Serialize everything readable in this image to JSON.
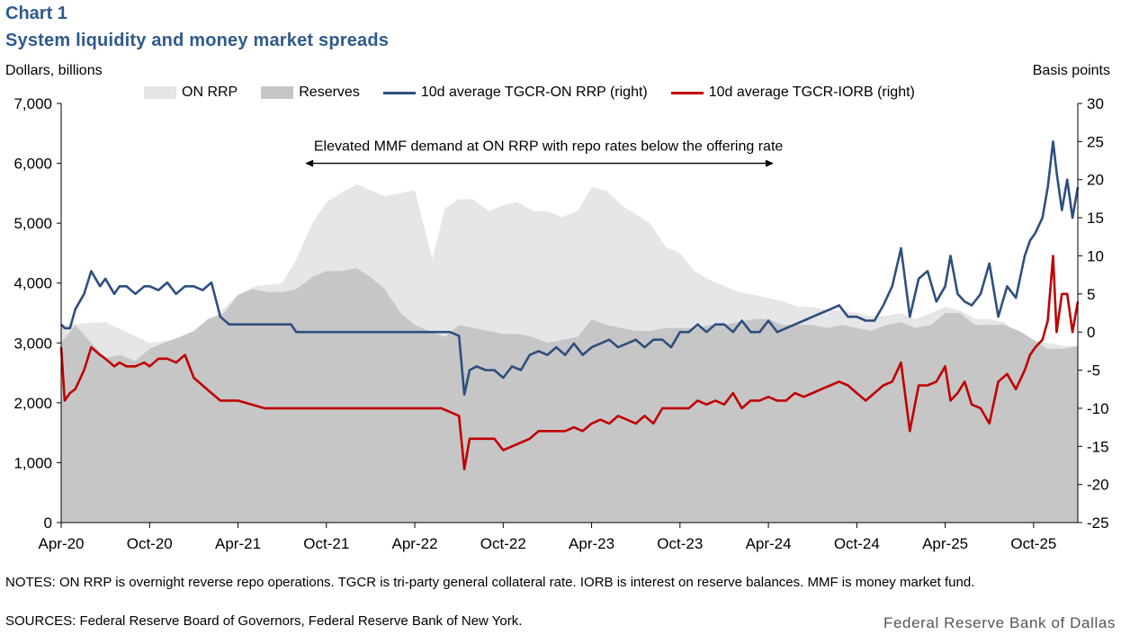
{
  "header": {
    "chart_label": "Chart 1",
    "title": "System liquidity and money market spreads",
    "left_unit": "Dollars, billions",
    "right_unit": "Basis points"
  },
  "colors": {
    "on_rrp": "#e6e6e8",
    "reserves": "#c6c6c6",
    "tgcr_on_rrp": "#2d4f7e",
    "tgcr_iorb": "#c00000",
    "title": "#2f5a8c"
  },
  "chart_data": {
    "type": "area",
    "title": "System liquidity and money market spreads",
    "xlabel": "",
    "ylabel_left": "Dollars, billions",
    "ylabel_right": "Basis points",
    "x_range": [
      2020.25,
      2026.0
    ],
    "ylim_left": [
      0,
      7000
    ],
    "ylim_right": [
      -25,
      30
    ],
    "x_ticks": [
      {
        "label": "Apr-20",
        "x": 2020.25
      },
      {
        "label": "Oct-20",
        "x": 2020.75
      },
      {
        "label": "Apr-21",
        "x": 2021.25
      },
      {
        "label": "Oct-21",
        "x": 2021.75
      },
      {
        "label": "Apr-22",
        "x": 2022.25
      },
      {
        "label": "Oct-22",
        "x": 2022.75
      },
      {
        "label": "Apr-23",
        "x": 2023.25
      },
      {
        "label": "Oct-23",
        "x": 2023.75
      },
      {
        "label": "Apr-24",
        "x": 2024.25
      },
      {
        "label": "Oct-24",
        "x": 2024.75
      },
      {
        "label": "Apr-25",
        "x": 2025.25
      },
      {
        "label": "Oct-25",
        "x": 2025.75
      }
    ],
    "left_ticks": [
      "0",
      "1,000",
      "2,000",
      "3,000",
      "4,000",
      "5,000",
      "6,000",
      "7,000"
    ],
    "left_tick_values": [
      0,
      1000,
      2000,
      3000,
      4000,
      5000,
      6000,
      7000
    ],
    "right_ticks": [
      "-25",
      "-20",
      "-15",
      "-10",
      "-5",
      "0",
      "5",
      "10",
      "15",
      "20",
      "25",
      "30"
    ],
    "right_tick_values": [
      -25,
      -20,
      -15,
      -10,
      -5,
      0,
      5,
      10,
      15,
      20,
      25,
      30
    ],
    "annotation": {
      "text": "Elevated MMF demand at ON RRP with repo rates below the offering rate",
      "x_start": 2021.63,
      "x_end": 2024.28,
      "arrow_y_left": 6000
    },
    "series": [
      {
        "name": "ON RRP",
        "axis": "left",
        "kind": "area",
        "x": [
          2020.25,
          2020.5,
          2020.75,
          2021.0,
          2021.25,
          2021.35,
          2021.5,
          2021.58,
          2021.67,
          2021.75,
          2021.83,
          2021.92,
          2022.0,
          2022.08,
          2022.17,
          2022.25,
          2022.35,
          2022.42,
          2022.5,
          2022.58,
          2022.67,
          2022.75,
          2022.83,
          2022.92,
          2023.0,
          2023.08,
          2023.17,
          2023.25,
          2023.33,
          2023.42,
          2023.5,
          2023.58,
          2023.67,
          2023.75,
          2023.83,
          2023.92,
          2024.0,
          2024.08,
          2024.17,
          2024.25,
          2024.33,
          2024.42,
          2024.5,
          2024.58,
          2024.67,
          2024.75,
          2024.83,
          2024.92,
          2025.0,
          2025.08,
          2025.17,
          2025.25,
          2025.33,
          2025.42,
          2025.5,
          2025.58,
          2025.67,
          2025.75,
          2025.83,
          2025.92,
          2026.0
        ],
        "values": [
          3300,
          3350,
          3000,
          3100,
          3800,
          3950,
          4000,
          4400,
          5000,
          5350,
          5500,
          5650,
          5550,
          5450,
          5500,
          5550,
          4400,
          5250,
          5400,
          5400,
          5200,
          5300,
          5350,
          5200,
          5200,
          5100,
          5200,
          5600,
          5550,
          5300,
          5150,
          5000,
          4600,
          4500,
          4200,
          4050,
          3950,
          3850,
          3800,
          3750,
          3700,
          3600,
          3600,
          3550,
          3550,
          3500,
          3450,
          3450,
          3500,
          3400,
          3500,
          3600,
          3550,
          3400,
          3400,
          3350,
          3150,
          3050,
          3000,
          2950,
          2950
        ]
      },
      {
        "name": "Reserves",
        "axis": "left",
        "kind": "area",
        "x": [
          2020.25,
          2020.33,
          2020.42,
          2020.5,
          2020.58,
          2020.67,
          2020.75,
          2020.83,
          2020.92,
          2021.0,
          2021.08,
          2021.17,
          2021.25,
          2021.33,
          2021.42,
          2021.5,
          2021.58,
          2021.67,
          2021.75,
          2021.83,
          2021.92,
          2022.0,
          2022.08,
          2022.17,
          2022.25,
          2022.33,
          2022.42,
          2022.5,
          2022.58,
          2022.67,
          2022.75,
          2022.83,
          2022.92,
          2023.0,
          2023.08,
          2023.17,
          2023.25,
          2023.33,
          2023.42,
          2023.5,
          2023.58,
          2023.67,
          2023.75,
          2023.83,
          2023.92,
          2024.0,
          2024.08,
          2024.17,
          2024.25,
          2024.33,
          2024.42,
          2024.5,
          2024.58,
          2024.67,
          2024.75,
          2024.83,
          2024.92,
          2025.0,
          2025.08,
          2025.17,
          2025.25,
          2025.33,
          2025.42,
          2025.5,
          2025.58,
          2025.67,
          2025.75,
          2025.83,
          2025.92,
          2026.0
        ],
        "values": [
          3000,
          3300,
          3000,
          2750,
          2800,
          2700,
          2900,
          3000,
          3100,
          3200,
          3400,
          3500,
          3800,
          3900,
          3850,
          3850,
          3900,
          4100,
          4200,
          4200,
          4250,
          4100,
          3900,
          3500,
          3300,
          3200,
          3100,
          3300,
          3250,
          3200,
          3150,
          3150,
          3100,
          3000,
          3050,
          3100,
          3400,
          3300,
          3250,
          3200,
          3200,
          3250,
          3250,
          3250,
          3300,
          3300,
          3350,
          3400,
          3400,
          3300,
          3300,
          3300,
          3250,
          3300,
          3250,
          3200,
          3300,
          3350,
          3250,
          3300,
          3500,
          3500,
          3300,
          3300,
          3300,
          3200,
          3050,
          2900,
          2900,
          2950
        ]
      },
      {
        "name": "10d average TGCR-ON RRP (right)",
        "axis": "right",
        "kind": "line",
        "x": [
          2020.25,
          2020.27,
          2020.3,
          2020.33,
          2020.38,
          2020.42,
          2020.47,
          2020.5,
          2020.55,
          2020.58,
          2020.62,
          2020.67,
          2020.72,
          2020.75,
          2020.8,
          2020.85,
          2020.9,
          2020.95,
          2021.0,
          2021.05,
          2021.1,
          2021.15,
          2021.2,
          2021.25,
          2021.4,
          2021.55,
          2021.58,
          2021.7,
          2021.85,
          2022.0,
          2022.15,
          2022.3,
          2022.4,
          2022.45,
          2022.5,
          2022.53,
          2022.56,
          2022.6,
          2022.65,
          2022.7,
          2022.75,
          2022.8,
          2022.85,
          2022.9,
          2022.95,
          2023.0,
          2023.05,
          2023.1,
          2023.15,
          2023.2,
          2023.25,
          2023.3,
          2023.35,
          2023.4,
          2023.45,
          2023.5,
          2023.55,
          2023.6,
          2023.65,
          2023.7,
          2023.75,
          2023.8,
          2023.85,
          2023.9,
          2023.95,
          2024.0,
          2024.05,
          2024.1,
          2024.15,
          2024.2,
          2024.25,
          2024.3,
          2024.35,
          2024.4,
          2024.45,
          2024.5,
          2024.55,
          2024.6,
          2024.65,
          2024.7,
          2024.75,
          2024.8,
          2024.85,
          2024.9,
          2024.95,
          2025.0,
          2025.05,
          2025.1,
          2025.15,
          2025.2,
          2025.25,
          2025.28,
          2025.32,
          2025.36,
          2025.4,
          2025.45,
          2025.5,
          2025.55,
          2025.6,
          2025.65,
          2025.7,
          2025.73,
          2025.76,
          2025.8,
          2025.83,
          2025.86,
          2025.88,
          2025.91,
          2025.94,
          2025.97,
          2026.0
        ],
        "values": [
          1,
          0.5,
          0.5,
          3,
          5,
          8,
          6,
          7,
          5,
          6,
          6,
          5,
          6,
          6,
          5.5,
          6.5,
          5,
          6,
          6,
          5.5,
          6.5,
          2,
          1,
          1,
          1,
          1,
          0,
          0,
          0,
          0,
          0,
          0,
          0,
          0,
          -0.5,
          -8.2,
          -5,
          -4.5,
          -5,
          -5,
          -6,
          -4.5,
          -5,
          -3,
          -2.5,
          -3,
          -2,
          -3,
          -1.5,
          -3,
          -2,
          -1.5,
          -1,
          -2,
          -1.5,
          -1,
          -2,
          -1,
          -1,
          -2,
          0,
          0,
          1,
          0,
          1,
          1,
          0,
          1.5,
          0,
          0,
          1.5,
          0,
          0.5,
          1,
          1.5,
          2,
          2.5,
          3,
          3.5,
          2,
          2,
          1.5,
          1.5,
          3.5,
          6,
          11,
          2,
          7,
          8,
          4,
          6,
          10,
          5,
          4,
          3.5,
          5,
          9,
          2,
          6,
          4.5,
          10,
          12,
          13,
          15,
          19,
          25,
          21,
          16,
          20,
          15,
          19
        ]
      },
      {
        "name": "10d average TGCR-IORB (right)",
        "axis": "right",
        "kind": "line",
        "x": [
          2020.25,
          2020.27,
          2020.3,
          2020.33,
          2020.38,
          2020.42,
          2020.47,
          2020.5,
          2020.55,
          2020.58,
          2020.62,
          2020.67,
          2020.72,
          2020.75,
          2020.8,
          2020.85,
          2020.9,
          2020.95,
          2021.0,
          2021.05,
          2021.1,
          2021.15,
          2021.2,
          2021.25,
          2021.4,
          2021.55,
          2021.58,
          2021.7,
          2021.85,
          2022.0,
          2022.15,
          2022.3,
          2022.4,
          2022.45,
          2022.5,
          2022.53,
          2022.56,
          2022.6,
          2022.65,
          2022.7,
          2022.75,
          2022.8,
          2022.85,
          2022.9,
          2022.95,
          2023.0,
          2023.05,
          2023.1,
          2023.15,
          2023.2,
          2023.25,
          2023.3,
          2023.35,
          2023.4,
          2023.45,
          2023.5,
          2023.55,
          2023.6,
          2023.65,
          2023.7,
          2023.75,
          2023.8,
          2023.85,
          2023.9,
          2023.95,
          2024.0,
          2024.05,
          2024.1,
          2024.15,
          2024.2,
          2024.25,
          2024.3,
          2024.35,
          2024.4,
          2024.45,
          2024.5,
          2024.55,
          2024.6,
          2024.65,
          2024.7,
          2024.75,
          2024.8,
          2024.85,
          2024.9,
          2024.95,
          2025.0,
          2025.05,
          2025.1,
          2025.15,
          2025.2,
          2025.25,
          2025.28,
          2025.32,
          2025.36,
          2025.4,
          2025.45,
          2025.5,
          2025.55,
          2025.6,
          2025.65,
          2025.7,
          2025.73,
          2025.76,
          2025.8,
          2025.83,
          2025.86,
          2025.88,
          2025.91,
          2025.94,
          2025.97,
          2026.0
        ],
        "values": [
          -2,
          -9,
          -8,
          -7.5,
          -5,
          -2,
          -3,
          -3.5,
          -4.5,
          -4,
          -4.5,
          -4.5,
          -4,
          -4.5,
          -3.5,
          -3.5,
          -4,
          -3,
          -6,
          -7,
          -8,
          -9,
          -9,
          -9,
          -10,
          -10,
          -10,
          -10,
          -10,
          -10,
          -10,
          -10,
          -10,
          -10.5,
          -11,
          -18,
          -14,
          -14,
          -14,
          -14,
          -15.5,
          -15,
          -14.5,
          -14,
          -13,
          -13,
          -13,
          -13,
          -12.5,
          -13,
          -12,
          -11.5,
          -12,
          -11,
          -11.5,
          -12,
          -11,
          -12,
          -10,
          -10,
          -10,
          -10,
          -9,
          -9.5,
          -9,
          -9.5,
          -8,
          -10,
          -9,
          -9,
          -8.5,
          -9,
          -9,
          -8,
          -8.5,
          -8,
          -7.5,
          -7,
          -6.5,
          -7,
          -8,
          -9,
          -8,
          -7,
          -6.5,
          -4,
          -13,
          -7,
          -7,
          -6.5,
          -4.5,
          -9,
          -8,
          -6.5,
          -9.5,
          -10,
          -12,
          -6.5,
          -5.5,
          -7.5,
          -5,
          -3,
          -2,
          -1,
          1.5,
          10,
          0,
          5,
          5,
          0,
          4
        ]
      }
    ]
  },
  "notes": "NOTES: ON RRP is overnight reverse repo operations. TGCR is tri-party general collateral rate. IORB is interest on reserve balances. MMF is money market fund.",
  "sources": "SOURCES: Federal Reserve Board of Governors, Federal Reserve Bank of New York.",
  "brand": "Federal Reserve Bank of Dallas"
}
